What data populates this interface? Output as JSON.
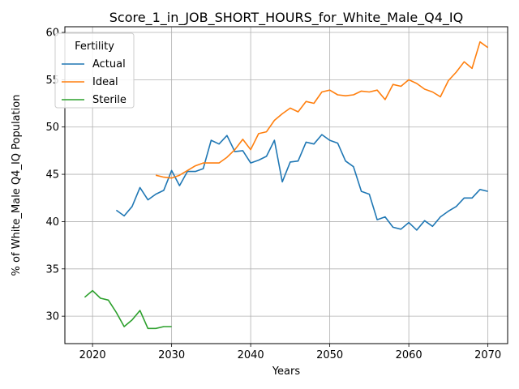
{
  "chart_data": {
    "type": "line",
    "title": "Score_1_in_JOB_SHORT_HOURS_for_White_Male_Q4_IQ",
    "xlabel": "Years",
    "ylabel": "% of White_Male Q4_IQ Population",
    "xlim": [
      2016.5,
      2072.5
    ],
    "ylim": [
      27.1,
      60.6
    ],
    "x_ticks": [
      2020,
      2030,
      2040,
      2050,
      2060,
      2070
    ],
    "y_ticks": [
      30,
      35,
      40,
      45,
      50,
      55,
      60
    ],
    "grid": true,
    "legend": {
      "title": "Fertility",
      "position": "upper left"
    },
    "series": [
      {
        "name": "Actual",
        "color": "#1f77b4",
        "x": [
          2023,
          2024,
          2025,
          2026,
          2027,
          2028,
          2029,
          2030,
          2031,
          2032,
          2033,
          2034,
          2035,
          2036,
          2037,
          2038,
          2039,
          2040,
          2041,
          2042,
          2043,
          2044,
          2045,
          2046,
          2047,
          2048,
          2049,
          2050,
          2051,
          2052,
          2053,
          2054,
          2055,
          2056,
          2057,
          2058,
          2059,
          2060,
          2061,
          2062,
          2063,
          2064,
          2065,
          2066,
          2067,
          2068,
          2069,
          2070
        ],
        "y": [
          41.2,
          40.6,
          41.6,
          43.6,
          42.3,
          42.9,
          43.3,
          45.4,
          43.8,
          45.3,
          45.3,
          45.6,
          48.6,
          48.2,
          49.1,
          47.4,
          47.5,
          46.2,
          46.5,
          46.9,
          48.6,
          44.2,
          46.3,
          46.4,
          48.4,
          48.2,
          49.2,
          48.6,
          48.3,
          46.4,
          45.8,
          43.2,
          42.9,
          40.2,
          40.5,
          39.4,
          39.2,
          39.9,
          39.1,
          40.1,
          39.5,
          40.5,
          41.1,
          41.6,
          42.5,
          42.5,
          43.4,
          43.2
        ]
      },
      {
        "name": "Ideal",
        "color": "#ff7f0e",
        "x": [
          2028,
          2029,
          2030,
          2031,
          2032,
          2033,
          2034,
          2035,
          2036,
          2037,
          2038,
          2039,
          2040,
          2041,
          2042,
          2043,
          2044,
          2045,
          2046,
          2047,
          2048,
          2049,
          2050,
          2051,
          2052,
          2053,
          2054,
          2055,
          2056,
          2057,
          2058,
          2059,
          2060,
          2061,
          2062,
          2063,
          2064,
          2065,
          2066,
          2067,
          2068,
          2069,
          2070
        ],
        "y": [
          44.9,
          44.7,
          44.6,
          44.9,
          45.4,
          45.9,
          46.2,
          46.2,
          46.2,
          46.8,
          47.6,
          48.7,
          47.6,
          49.3,
          49.5,
          50.7,
          51.4,
          52.0,
          51.6,
          52.7,
          52.5,
          53.7,
          53.9,
          53.4,
          53.3,
          53.4,
          53.8,
          53.7,
          53.9,
          52.9,
          54.5,
          54.3,
          55.0,
          54.6,
          54.0,
          53.7,
          53.2,
          54.9,
          55.8,
          56.9,
          56.2,
          59.0,
          58.4
        ]
      },
      {
        "name": "Sterile",
        "color": "#2ca02c",
        "x": [
          2019,
          2020,
          2021,
          2022,
          2023,
          2024,
          2025,
          2026,
          2027,
          2028,
          2029,
          2030
        ],
        "y": [
          32.0,
          32.7,
          31.9,
          31.7,
          30.4,
          28.9,
          29.6,
          30.6,
          28.7,
          28.7,
          28.9,
          28.9
        ]
      }
    ]
  }
}
